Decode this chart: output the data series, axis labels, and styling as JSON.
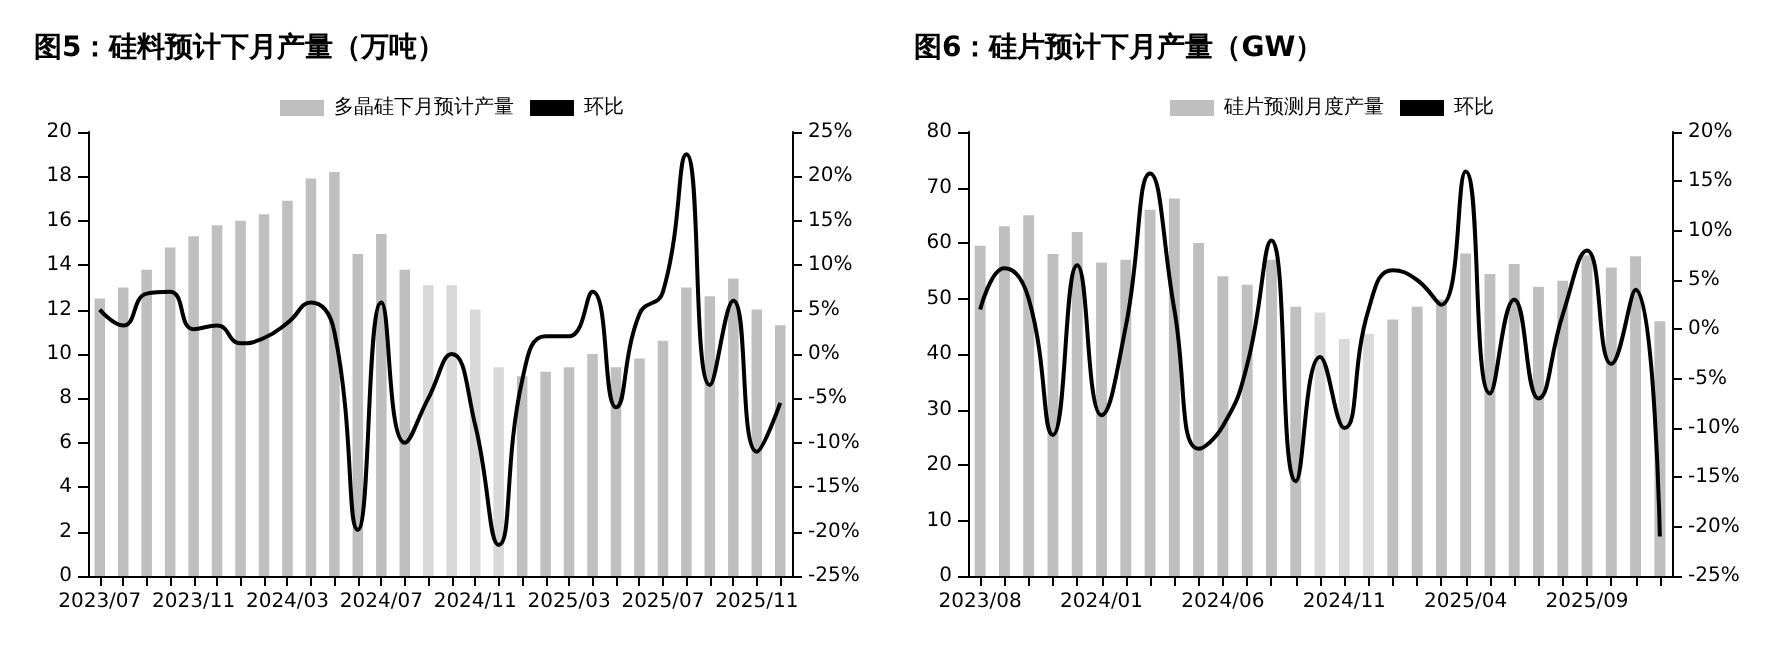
{
  "chart_data": [
    {
      "type": "bar",
      "title": "图5：硅料预计下月产量（万吨）",
      "legend": "top",
      "grid": false,
      "marker": "none",
      "categories": [
        "2023/07",
        null,
        null,
        null,
        "2023/11",
        null,
        null,
        null,
        "2024/03",
        null,
        null,
        null,
        "2024/07",
        null,
        null,
        null,
        "2024/11",
        null,
        null,
        null,
        "2025/03",
        null,
        null,
        null,
        "2025/07",
        null,
        null,
        null,
        "2025/11",
        null
      ],
      "series": [
        {
          "name": "多晶硅下月预计产量",
          "color": "#bfbfbf",
          "colors": [
            "#bfbfbf",
            "#bfbfbf",
            "#bfbfbf",
            "#bfbfbf",
            "#bfbfbf",
            "#bfbfbf",
            "#bfbfbf",
            "#bfbfbf",
            "#bfbfbf",
            "#bfbfbf",
            "#bfbfbf",
            "#bfbfbf",
            "#bfbfbf",
            "#bfbfbf",
            "#d9d9d9",
            "#d9d9d9",
            "#d9d9d9",
            "#d9d9d9",
            "#bfbfbf",
            "#bfbfbf",
            "#bfbfbf",
            "#bfbfbf",
            "#bfbfbf",
            "#bfbfbf",
            "#bfbfbf",
            "#bfbfbf",
            "#bfbfbf",
            "#bfbfbf",
            "#bfbfbf",
            "#bfbfbf"
          ],
          "values": [
            12.5,
            13,
            13.8,
            14.8,
            15.3,
            15.8,
            16,
            16.3,
            16.9,
            17.9,
            18.2,
            14.5,
            15.4,
            13.8,
            13.1,
            13.1,
            12,
            9.4,
            9,
            9.2,
            9.4,
            10,
            9.4,
            9.8,
            10.6,
            13,
            12.6,
            13.4,
            12,
            11.3
          ]
        },
        {
          "name": "环比",
          "type": "line",
          "axis": "y2",
          "color": "#000000",
          "values": [
            5,
            3.2,
            6.8,
            7,
            2.8,
            3.2,
            1.2,
            1.8,
            3.5,
            5.8,
            2.5,
            -19.8,
            5.8,
            -10,
            -5,
            0,
            -8,
            -21.5,
            -3,
            2,
            2,
            7,
            -6,
            4.5,
            7,
            22.5,
            -3.5,
            6,
            -11,
            -5.5
          ]
        }
      ],
      "ylim": [
        0,
        20
      ],
      "yticks": [
        0,
        2,
        4,
        6,
        8,
        10,
        12,
        14,
        16,
        18,
        20
      ],
      "y2lim": [
        -25,
        25
      ],
      "y2ticks": [
        {
          "value": -25,
          "label": "-25%"
        },
        {
          "value": -20,
          "label": "-20%"
        },
        {
          "value": -15,
          "label": "-15%"
        },
        {
          "value": -10,
          "label": "-10%"
        },
        {
          "value": -5,
          "label": "-5%"
        },
        {
          "value": 0,
          "label": "0%"
        },
        {
          "value": 5,
          "label": "5%"
        },
        {
          "value": 10,
          "label": "10%"
        },
        {
          "value": 15,
          "label": "15%"
        },
        {
          "value": 20,
          "label": "20%"
        },
        {
          "value": 25,
          "label": "25%"
        }
      ]
    },
    {
      "type": "bar",
      "title": "图6：硅片预计下月产量（GW）",
      "legend": "top",
      "grid": false,
      "marker": "none",
      "categories": [
        "2023/08",
        null,
        null,
        null,
        null,
        "2024/01",
        null,
        null,
        null,
        null,
        "2024/06",
        null,
        null,
        null,
        null,
        "2024/11",
        null,
        null,
        null,
        null,
        "2025/04",
        null,
        null,
        null,
        null,
        "2025/09",
        null,
        null,
        null
      ],
      "series": [
        {
          "name": "硅片预测月度产量",
          "color": "#bfbfbf",
          "colors": [
            "#bfbfbf",
            "#bfbfbf",
            "#bfbfbf",
            "#bfbfbf",
            "#bfbfbf",
            "#bfbfbf",
            "#bfbfbf",
            "#bfbfbf",
            "#bfbfbf",
            "#bfbfbf",
            "#bfbfbf",
            "#bfbfbf",
            "#bfbfbf",
            "#bfbfbf",
            "#d9d9d9",
            "#d9d9d9",
            "#d9d9d9",
            "#bfbfbf",
            "#bfbfbf",
            "#bfbfbf",
            "#bfbfbf",
            "#bfbfbf",
            "#bfbfbf",
            "#bfbfbf",
            "#bfbfbf",
            "#bfbfbf",
            "#bfbfbf",
            "#bfbfbf",
            "#bfbfbf"
          ],
          "values": [
            59.5,
            63,
            65,
            58,
            62,
            56.5,
            57,
            66,
            68,
            60,
            54,
            52.5,
            57,
            48.5,
            47.5,
            42.7,
            43.6,
            46.2,
            48.5,
            49.8,
            58.1,
            54.4,
            56.2,
            52.1,
            53.2,
            57.8,
            55.6,
            57.6,
            45.9
          ]
        },
        {
          "name": "环比",
          "type": "line",
          "axis": "y2",
          "color": "#000000",
          "values": [
            2,
            6.2,
            3.1,
            -10.7,
            6.5,
            -8.7,
            0.3,
            15.8,
            2,
            -12.1,
            -9.8,
            -3.6,
            9,
            -15.4,
            -2.8,
            -10,
            2,
            6,
            5,
            2.5,
            16,
            -6.5,
            3,
            -7,
            1.5,
            8,
            -3.5,
            4,
            -21
          ]
        }
      ],
      "ylim": [
        0,
        80
      ],
      "yticks": [
        0,
        10,
        20,
        30,
        40,
        50,
        60,
        70,
        80
      ],
      "y2lim": [
        -25,
        20
      ],
      "y2ticks": [
        {
          "value": -25,
          "label": "-25%"
        },
        {
          "value": -20,
          "label": "-20%"
        },
        {
          "value": -15,
          "label": "-15%"
        },
        {
          "value": -10,
          "label": "-10%"
        },
        {
          "value": -5,
          "label": "-5%"
        },
        {
          "value": 0,
          "label": "0%"
        },
        {
          "value": 5,
          "label": "5%"
        },
        {
          "value": 10,
          "label": "10%"
        },
        {
          "value": 15,
          "label": "15%"
        },
        {
          "value": 20,
          "label": "20%"
        }
      ]
    }
  ]
}
